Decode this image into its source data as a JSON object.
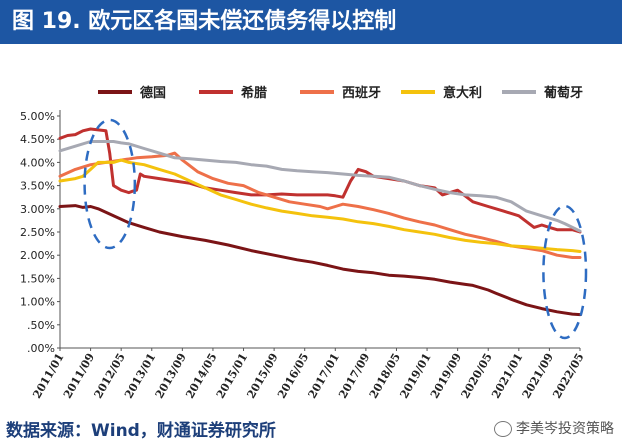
{
  "header": {
    "title": "图  19. 欧元区各国未偿还债务得以控制"
  },
  "footer": {
    "source": "数据来源：Wind，财通证券研究所",
    "watermark": "李美岑投资策略"
  },
  "colors": {
    "banner": "#1d56a3",
    "source_text": "#1d3f7a",
    "germany": "#7b1416",
    "greece": "#c0312f",
    "spain": "#ee7049",
    "italy": "#f4c20d",
    "portugal": "#a7a9b3",
    "highlight": "#2e6cc2"
  },
  "chart_data": {
    "type": "line",
    "title": "",
    "xlabel": "",
    "ylabel": "",
    "ylim": [
      0,
      5.0
    ],
    "yticks": [
      0,
      0.5,
      1.0,
      1.5,
      2.0,
      2.5,
      3.0,
      3.5,
      4.0,
      4.5,
      5.0
    ],
    "ytick_labels": [
      ".00%",
      ".50%",
      "1.00%",
      "1.50%",
      "2.00%",
      "2.50%",
      "3.00%",
      "3.50%",
      "4.00%",
      "4.50%",
      "5.00%"
    ],
    "x_ticks": [
      "2011/01",
      "2011/09",
      "2012/05",
      "2013/01",
      "2013/09",
      "2014/05",
      "2015/01",
      "2015/09",
      "2016/05",
      "2017/01",
      "2017/09",
      "2018/05",
      "2019/01",
      "2019/09",
      "2020/05",
      "2021/01",
      "2021/09",
      "2022/05"
    ],
    "x_unit": "months since 2011/01",
    "x_range": [
      0,
      136
    ],
    "legend": [
      "德国",
      "希腊",
      "西班牙",
      "意大利",
      "葡萄牙"
    ],
    "legend_position": "top",
    "highlight_periods": [
      {
        "label": "2011/09-2012/05",
        "x_from": 8,
        "x_to": 18
      },
      {
        "label": "2021/09-2022/05",
        "x_from": 128,
        "x_to": 136
      }
    ],
    "series": [
      {
        "name": "德国",
        "color_key": "germany",
        "points": [
          [
            0,
            3.05
          ],
          [
            4,
            3.07
          ],
          [
            6,
            3.03
          ],
          [
            8,
            3.05
          ],
          [
            10,
            3.0
          ],
          [
            14,
            2.85
          ],
          [
            18,
            2.7
          ],
          [
            22,
            2.6
          ],
          [
            26,
            2.5
          ],
          [
            32,
            2.4
          ],
          [
            38,
            2.32
          ],
          [
            44,
            2.22
          ],
          [
            50,
            2.1
          ],
          [
            56,
            2.0
          ],
          [
            62,
            1.9
          ],
          [
            66,
            1.85
          ],
          [
            70,
            1.78
          ],
          [
            74,
            1.7
          ],
          [
            78,
            1.65
          ],
          [
            82,
            1.62
          ],
          [
            86,
            1.57
          ],
          [
            90,
            1.55
          ],
          [
            94,
            1.52
          ],
          [
            98,
            1.48
          ],
          [
            102,
            1.42
          ],
          [
            106,
            1.37
          ],
          [
            108,
            1.35
          ],
          [
            112,
            1.25
          ],
          [
            114,
            1.18
          ],
          [
            118,
            1.05
          ],
          [
            122,
            0.93
          ],
          [
            126,
            0.85
          ],
          [
            130,
            0.78
          ],
          [
            134,
            0.73
          ],
          [
            136,
            0.72
          ]
        ]
      },
      {
        "name": "希腊",
        "color_key": "greece",
        "points": [
          [
            0,
            4.52
          ],
          [
            2,
            4.58
          ],
          [
            4,
            4.6
          ],
          [
            6,
            4.68
          ],
          [
            8,
            4.72
          ],
          [
            10,
            4.7
          ],
          [
            12,
            4.68
          ],
          [
            13,
            4.2
          ],
          [
            14,
            3.5
          ],
          [
            16,
            3.4
          ],
          [
            18,
            3.35
          ],
          [
            19,
            3.38
          ],
          [
            20,
            3.4
          ],
          [
            21,
            3.75
          ],
          [
            22,
            3.7
          ],
          [
            26,
            3.65
          ],
          [
            30,
            3.6
          ],
          [
            34,
            3.55
          ],
          [
            38,
            3.45
          ],
          [
            42,
            3.4
          ],
          [
            46,
            3.35
          ],
          [
            50,
            3.3
          ],
          [
            54,
            3.3
          ],
          [
            58,
            3.32
          ],
          [
            62,
            3.3
          ],
          [
            66,
            3.3
          ],
          [
            70,
            3.3
          ],
          [
            72,
            3.28
          ],
          [
            74,
            3.25
          ],
          [
            76,
            3.6
          ],
          [
            78,
            3.85
          ],
          [
            80,
            3.8
          ],
          [
            82,
            3.7
          ],
          [
            86,
            3.65
          ],
          [
            90,
            3.6
          ],
          [
            94,
            3.5
          ],
          [
            98,
            3.45
          ],
          [
            100,
            3.3
          ],
          [
            104,
            3.4
          ],
          [
            108,
            3.15
          ],
          [
            112,
            3.05
          ],
          [
            116,
            2.95
          ],
          [
            120,
            2.85
          ],
          [
            124,
            2.6
          ],
          [
            126,
            2.65
          ],
          [
            128,
            2.6
          ],
          [
            130,
            2.55
          ],
          [
            134,
            2.55
          ],
          [
            136,
            2.5
          ]
        ]
      },
      {
        "name": "西班牙",
        "color_key": "spain",
        "points": [
          [
            0,
            3.7
          ],
          [
            4,
            3.85
          ],
          [
            8,
            3.95
          ],
          [
            12,
            4.0
          ],
          [
            16,
            4.05
          ],
          [
            20,
            4.1
          ],
          [
            24,
            4.12
          ],
          [
            28,
            4.15
          ],
          [
            30,
            4.2
          ],
          [
            32,
            4.05
          ],
          [
            36,
            3.8
          ],
          [
            40,
            3.65
          ],
          [
            44,
            3.55
          ],
          [
            48,
            3.5
          ],
          [
            52,
            3.35
          ],
          [
            56,
            3.25
          ],
          [
            60,
            3.15
          ],
          [
            64,
            3.1
          ],
          [
            68,
            3.05
          ],
          [
            70,
            3.0
          ],
          [
            72,
            3.05
          ],
          [
            74,
            3.1
          ],
          [
            78,
            3.05
          ],
          [
            82,
            2.98
          ],
          [
            86,
            2.9
          ],
          [
            90,
            2.8
          ],
          [
            94,
            2.72
          ],
          [
            98,
            2.65
          ],
          [
            102,
            2.55
          ],
          [
            106,
            2.45
          ],
          [
            110,
            2.38
          ],
          [
            114,
            2.3
          ],
          [
            118,
            2.2
          ],
          [
            122,
            2.15
          ],
          [
            126,
            2.1
          ],
          [
            130,
            2.0
          ],
          [
            134,
            1.95
          ],
          [
            136,
            1.95
          ]
        ]
      },
      {
        "name": "意大利",
        "color_key": "italy",
        "points": [
          [
            0,
            3.6
          ],
          [
            4,
            3.65
          ],
          [
            6,
            3.7
          ],
          [
            8,
            3.85
          ],
          [
            10,
            4.0
          ],
          [
            14,
            4.0
          ],
          [
            16,
            4.05
          ],
          [
            18,
            4.0
          ],
          [
            22,
            3.95
          ],
          [
            26,
            3.85
          ],
          [
            30,
            3.75
          ],
          [
            34,
            3.6
          ],
          [
            38,
            3.45
          ],
          [
            42,
            3.3
          ],
          [
            46,
            3.2
          ],
          [
            50,
            3.1
          ],
          [
            54,
            3.02
          ],
          [
            58,
            2.95
          ],
          [
            62,
            2.9
          ],
          [
            66,
            2.85
          ],
          [
            70,
            2.82
          ],
          [
            74,
            2.78
          ],
          [
            78,
            2.72
          ],
          [
            82,
            2.68
          ],
          [
            86,
            2.62
          ],
          [
            90,
            2.55
          ],
          [
            94,
            2.5
          ],
          [
            98,
            2.45
          ],
          [
            102,
            2.38
          ],
          [
            106,
            2.32
          ],
          [
            110,
            2.28
          ],
          [
            114,
            2.25
          ],
          [
            118,
            2.2
          ],
          [
            122,
            2.18
          ],
          [
            126,
            2.15
          ],
          [
            130,
            2.12
          ],
          [
            134,
            2.1
          ],
          [
            136,
            2.08
          ]
        ]
      },
      {
        "name": "葡萄牙",
        "color_key": "portugal",
        "points": [
          [
            0,
            4.25
          ],
          [
            4,
            4.35
          ],
          [
            8,
            4.45
          ],
          [
            12,
            4.45
          ],
          [
            14,
            4.45
          ],
          [
            16,
            4.42
          ],
          [
            18,
            4.4
          ],
          [
            22,
            4.3
          ],
          [
            26,
            4.2
          ],
          [
            30,
            4.1
          ],
          [
            34,
            4.08
          ],
          [
            38,
            4.05
          ],
          [
            42,
            4.02
          ],
          [
            46,
            4.0
          ],
          [
            50,
            3.95
          ],
          [
            54,
            3.92
          ],
          [
            58,
            3.85
          ],
          [
            62,
            3.82
          ],
          [
            66,
            3.8
          ],
          [
            70,
            3.78
          ],
          [
            74,
            3.75
          ],
          [
            78,
            3.72
          ],
          [
            82,
            3.7
          ],
          [
            86,
            3.68
          ],
          [
            90,
            3.6
          ],
          [
            94,
            3.5
          ],
          [
            98,
            3.42
          ],
          [
            102,
            3.35
          ],
          [
            106,
            3.3
          ],
          [
            110,
            3.28
          ],
          [
            114,
            3.25
          ],
          [
            118,
            3.15
          ],
          [
            122,
            2.95
          ],
          [
            126,
            2.85
          ],
          [
            130,
            2.75
          ],
          [
            132,
            2.68
          ],
          [
            134,
            2.6
          ],
          [
            136,
            2.52
          ]
        ]
      }
    ]
  }
}
